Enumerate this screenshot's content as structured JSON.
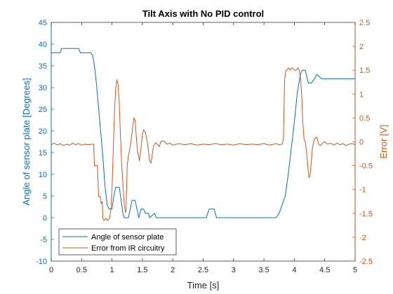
{
  "chart_data": {
    "type": "line",
    "title": "Tilt Axis with No PID control",
    "xlabel": "Time [s]",
    "ylabel_left": "Angle of sensor plate [Degrees]",
    "ylabel_right": "Error [V]",
    "xlim": [
      0,
      5
    ],
    "ylim_left": [
      -10,
      45
    ],
    "ylim_right": [
      -2.5,
      2.5
    ],
    "x_ticks": [
      "0",
      "0.5",
      "1",
      "1.5",
      "2",
      "2.5",
      "3",
      "3.5",
      "4",
      "4.5",
      "5"
    ],
    "y_left_ticks": [
      "-10",
      "-5",
      "0",
      "5",
      "10",
      "15",
      "20",
      "25",
      "30",
      "35",
      "40",
      "45"
    ],
    "y_right_ticks": [
      "-2.5",
      "-2",
      "-1.5",
      "-1",
      "-0.5",
      "0",
      "0.5",
      "1",
      "1.5",
      "2",
      "2.5"
    ],
    "grid": false,
    "legend_position": "bottom-left",
    "series": [
      {
        "name": "Angle of sensor plate",
        "axis": "left",
        "color": "#0072BD",
        "points": [
          [
            0,
            38
          ],
          [
            0.15,
            38
          ],
          [
            0.17,
            39
          ],
          [
            0.45,
            39
          ],
          [
            0.48,
            38
          ],
          [
            0.65,
            38
          ],
          [
            0.68,
            37.5
          ],
          [
            0.7,
            36
          ],
          [
            0.72,
            34
          ],
          [
            0.75,
            30
          ],
          [
            0.8,
            22
          ],
          [
            0.85,
            14
          ],
          [
            0.88,
            8
          ],
          [
            0.92,
            3
          ],
          [
            0.95,
            2
          ],
          [
            1.0,
            2
          ],
          [
            1.03,
            5
          ],
          [
            1.06,
            7
          ],
          [
            1.12,
            7
          ],
          [
            1.15,
            4
          ],
          [
            1.18,
            1
          ],
          [
            1.2,
            0
          ],
          [
            1.27,
            0
          ],
          [
            1.3,
            2
          ],
          [
            1.33,
            4
          ],
          [
            1.38,
            4
          ],
          [
            1.41,
            2
          ],
          [
            1.44,
            0
          ],
          [
            1.48,
            2
          ],
          [
            1.52,
            2
          ],
          [
            1.55,
            1
          ],
          [
            1.6,
            1
          ],
          [
            1.62,
            0
          ],
          [
            1.7,
            1
          ],
          [
            1.73,
            0
          ],
          [
            1.8,
            0
          ],
          [
            2.0,
            0
          ],
          [
            2.55,
            0
          ],
          [
            2.6,
            2
          ],
          [
            2.68,
            2
          ],
          [
            2.72,
            0
          ],
          [
            3.2,
            0
          ],
          [
            3.7,
            0
          ],
          [
            3.75,
            1
          ],
          [
            3.8,
            3
          ],
          [
            3.85,
            5
          ],
          [
            3.9,
            10
          ],
          [
            3.95,
            16
          ],
          [
            4.0,
            22
          ],
          [
            4.05,
            29
          ],
          [
            4.1,
            33
          ],
          [
            4.13,
            34
          ],
          [
            4.18,
            34
          ],
          [
            4.23,
            31
          ],
          [
            4.28,
            31
          ],
          [
            4.33,
            32
          ],
          [
            4.37,
            33
          ],
          [
            4.45,
            32
          ],
          [
            5.0,
            32
          ]
        ]
      },
      {
        "name": "Error from IR circuitry",
        "axis": "right",
        "color": "#D95319",
        "points": [
          [
            0,
            -0.06
          ],
          [
            0.05,
            -0.03
          ],
          [
            0.1,
            -0.07
          ],
          [
            0.15,
            -0.04
          ],
          [
            0.2,
            -0.08
          ],
          [
            0.25,
            -0.05
          ],
          [
            0.3,
            -0.07
          ],
          [
            0.35,
            -0.03
          ],
          [
            0.4,
            -0.06
          ],
          [
            0.45,
            -0.04
          ],
          [
            0.5,
            -0.07
          ],
          [
            0.55,
            -0.05
          ],
          [
            0.6,
            -0.06
          ],
          [
            0.7,
            -0.05
          ],
          [
            0.71,
            -0.5
          ],
          [
            0.76,
            -0.5
          ],
          [
            0.78,
            -1.15
          ],
          [
            0.81,
            -1.15
          ],
          [
            0.82,
            -1.3
          ],
          [
            0.84,
            -1.25
          ],
          [
            0.85,
            -1.6
          ],
          [
            0.87,
            -1.65
          ],
          [
            0.9,
            -1.6
          ],
          [
            0.93,
            -1.65
          ],
          [
            0.96,
            -1.6
          ],
          [
            0.98,
            -1.45
          ],
          [
            1.0,
            -1.0
          ],
          [
            1.02,
            -0.2
          ],
          [
            1.04,
            0.6
          ],
          [
            1.06,
            1.1
          ],
          [
            1.08,
            1.3
          ],
          [
            1.1,
            1.2
          ],
          [
            1.12,
            0.8
          ],
          [
            1.14,
            0.1
          ],
          [
            1.16,
            -0.5
          ],
          [
            1.18,
            -0.9
          ],
          [
            1.2,
            -1.3
          ],
          [
            1.22,
            -1.48
          ],
          [
            1.23,
            -1.45
          ],
          [
            1.24,
            -1.0
          ],
          [
            1.25,
            -0.5
          ],
          [
            1.27,
            -0.3
          ],
          [
            1.3,
            -0.1
          ],
          [
            1.32,
            0.1
          ],
          [
            1.34,
            0.3
          ],
          [
            1.36,
            0.5
          ],
          [
            1.38,
            0.45
          ],
          [
            1.4,
            0.1
          ],
          [
            1.42,
            -0.2
          ],
          [
            1.45,
            -0.4
          ],
          [
            1.48,
            -0.1
          ],
          [
            1.5,
            0.15
          ],
          [
            1.52,
            0.25
          ],
          [
            1.55,
            0.2
          ],
          [
            1.58,
            0.0
          ],
          [
            1.6,
            -0.2
          ],
          [
            1.62,
            -0.4
          ],
          [
            1.64,
            -0.45
          ],
          [
            1.66,
            -0.3
          ],
          [
            1.68,
            -0.1
          ],
          [
            1.7,
            -0.05
          ],
          [
            1.72,
            -0.02
          ],
          [
            1.75,
            -0.06
          ],
          [
            1.78,
            -0.1
          ],
          [
            1.8,
            0.0
          ],
          [
            1.85,
            0.02
          ],
          [
            1.9,
            -0.05
          ],
          [
            1.95,
            -0.03
          ],
          [
            2.0,
            -0.07
          ],
          [
            2.1,
            -0.04
          ],
          [
            2.2,
            -0.06
          ],
          [
            2.3,
            -0.04
          ],
          [
            2.4,
            -0.07
          ],
          [
            2.5,
            -0.05
          ],
          [
            2.6,
            -0.06
          ],
          [
            2.7,
            -0.04
          ],
          [
            2.8,
            -0.06
          ],
          [
            2.9,
            -0.05
          ],
          [
            3.0,
            -0.07
          ],
          [
            3.1,
            -0.04
          ],
          [
            3.2,
            -0.06
          ],
          [
            3.3,
            -0.05
          ],
          [
            3.4,
            -0.06
          ],
          [
            3.5,
            -0.04
          ],
          [
            3.6,
            -0.07
          ],
          [
            3.7,
            -0.04
          ],
          [
            3.75,
            -0.06
          ],
          [
            3.8,
            -0.05
          ],
          [
            3.82,
            0.05
          ],
          [
            3.84,
            1.3
          ],
          [
            3.86,
            1.5
          ],
          [
            3.88,
            1.5
          ],
          [
            3.9,
            1.55
          ],
          [
            3.93,
            1.5
          ],
          [
            3.96,
            1.55
          ],
          [
            4.0,
            1.5
          ],
          [
            4.03,
            1.5
          ],
          [
            4.06,
            1.55
          ],
          [
            4.08,
            1.5
          ],
          [
            4.1,
            1.35
          ],
          [
            4.12,
            1.0
          ],
          [
            4.14,
            0.4
          ],
          [
            4.16,
            0.05
          ],
          [
            4.18,
            0.0
          ],
          [
            4.2,
            -0.2
          ],
          [
            4.22,
            -0.5
          ],
          [
            4.24,
            -0.75
          ],
          [
            4.26,
            -0.7
          ],
          [
            4.28,
            -0.4
          ],
          [
            4.3,
            -0.1
          ],
          [
            4.33,
            0.05
          ],
          [
            4.37,
            0.1
          ],
          [
            4.4,
            -0.05
          ],
          [
            4.43,
            -0.08
          ],
          [
            4.47,
            -0.02
          ],
          [
            4.5,
            0.0
          ],
          [
            4.55,
            -0.05
          ],
          [
            4.6,
            -0.03
          ],
          [
            4.65,
            -0.07
          ],
          [
            4.7,
            -0.03
          ],
          [
            4.75,
            -0.06
          ],
          [
            4.8,
            -0.04
          ],
          [
            4.85,
            -0.08
          ],
          [
            4.9,
            -0.05
          ],
          [
            4.95,
            -0.04
          ],
          [
            5.0,
            -0.06
          ]
        ]
      }
    ]
  }
}
